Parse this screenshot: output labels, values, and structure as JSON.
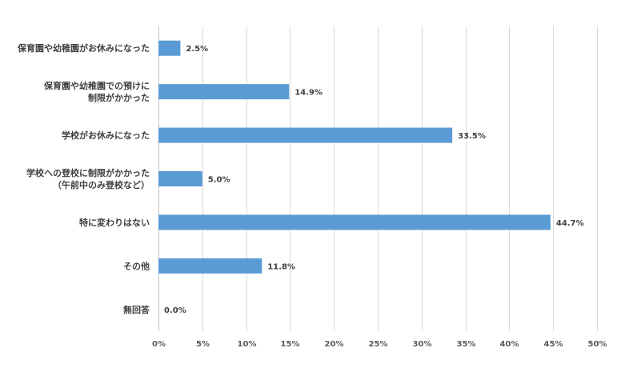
{
  "chart_data": {
    "type": "bar",
    "orientation": "horizontal",
    "categories": [
      [
        "保育園や幼稚園がお休みになった"
      ],
      [
        "保育園や幼稚園での預けに",
        "制限がかかった"
      ],
      [
        "学校がお休みになった"
      ],
      [
        "学校への登校に制限がかかった",
        "（午前中のみ登校など）"
      ],
      [
        "特に変わりはない"
      ],
      [
        "その他"
      ],
      [
        "無回答"
      ]
    ],
    "values": [
      2.5,
      14.9,
      33.5,
      5.0,
      44.7,
      11.8,
      0.0
    ],
    "value_labels": [
      "2.5%",
      "14.9%",
      "33.5%",
      "5.0%",
      "44.7%",
      "11.8%",
      "0.0%"
    ],
    "xlim": [
      0,
      50
    ],
    "x_ticks": [
      "0%",
      "5%",
      "10%",
      "15%",
      "20%",
      "25%",
      "30%",
      "35%",
      "40%",
      "45%",
      "50%"
    ],
    "x_tick_values": [
      0,
      5,
      10,
      15,
      20,
      25,
      30,
      35,
      40,
      45,
      50
    ],
    "grid": true,
    "bar_color": "#5b9bd5",
    "title": "",
    "xlabel": "",
    "ylabel": ""
  }
}
